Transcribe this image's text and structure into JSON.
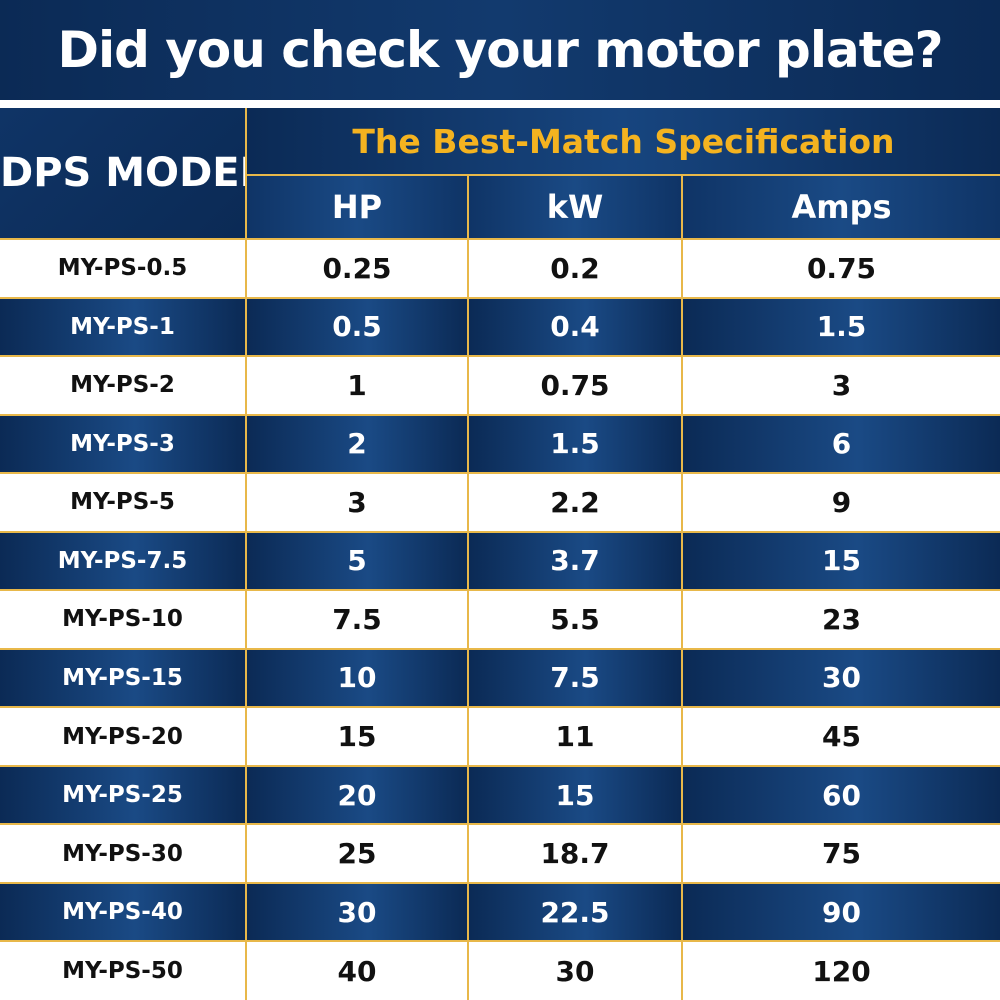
{
  "banner": {
    "title": "Did you check your motor plate?"
  },
  "table": {
    "model_header": "DPS MODEL",
    "group_header": "The Best-Match Specification",
    "columns": [
      "HP",
      "kW",
      "Amps"
    ],
    "rows": [
      {
        "model": "MY-PS-0.5",
        "hp": "0.25",
        "kw": "0.2",
        "amps": "0.75"
      },
      {
        "model": "MY-PS-1",
        "hp": "0.5",
        "kw": "0.4",
        "amps": "1.5"
      },
      {
        "model": "MY-PS-2",
        "hp": "1",
        "kw": "0.75",
        "amps": "3"
      },
      {
        "model": "MY-PS-3",
        "hp": "2",
        "kw": "1.5",
        "amps": "6"
      },
      {
        "model": "MY-PS-5",
        "hp": "3",
        "kw": "2.2",
        "amps": "9"
      },
      {
        "model": "MY-PS-7.5",
        "hp": "5",
        "kw": "3.7",
        "amps": "15"
      },
      {
        "model": "MY-PS-10",
        "hp": "7.5",
        "kw": "5.5",
        "amps": "23"
      },
      {
        "model": "MY-PS-15",
        "hp": "10",
        "kw": "7.5",
        "amps": "30"
      },
      {
        "model": "MY-PS-20",
        "hp": "15",
        "kw": "11",
        "amps": "45"
      },
      {
        "model": "MY-PS-25",
        "hp": "20",
        "kw": "15",
        "amps": "60"
      },
      {
        "model": "MY-PS-30",
        "hp": "25",
        "kw": "18.7",
        "amps": "75"
      },
      {
        "model": "MY-PS-40",
        "hp": "30",
        "kw": "22.5",
        "amps": "90"
      },
      {
        "model": "MY-PS-50",
        "hp": "40",
        "kw": "30",
        "amps": "120"
      }
    ]
  },
  "colors": {
    "navy": "#0b2a55",
    "gold": "#f4b320",
    "grid": "#e8b84a"
  }
}
